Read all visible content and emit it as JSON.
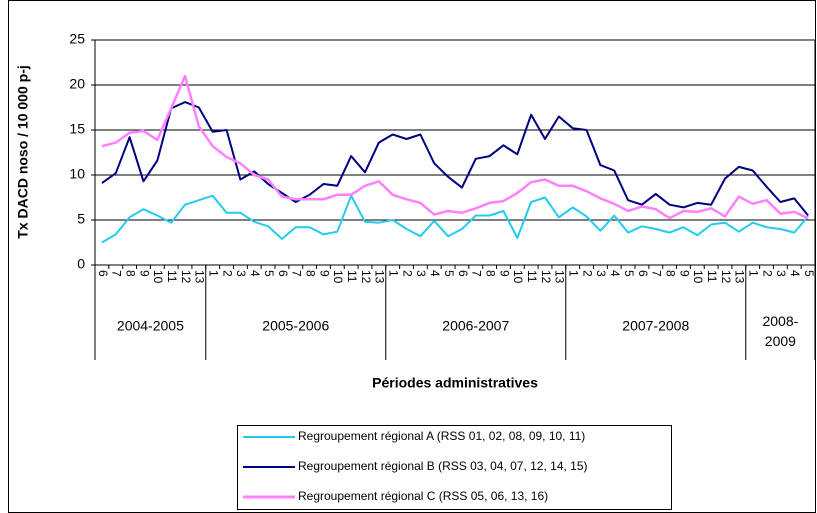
{
  "chart_data": {
    "type": "line",
    "y_label": "Tx DACD noso / 10 000 p-j",
    "x_label": "Périodes administratives",
    "groups": [
      {
        "label": "2004-2005",
        "categories": [
          "6",
          "7",
          "8",
          "9",
          "10",
          "11",
          "12",
          "13"
        ]
      },
      {
        "label": "2005-2006",
        "categories": [
          "1",
          "2",
          "3",
          "4",
          "5",
          "6",
          "7",
          "8",
          "9",
          "10",
          "11",
          "12",
          "13"
        ]
      },
      {
        "label": "2006-2007",
        "categories": [
          "1",
          "2",
          "3",
          "4",
          "5",
          "6",
          "7",
          "8",
          "9",
          "10",
          "11",
          "12",
          "13"
        ]
      },
      {
        "label": "2007-2008",
        "categories": [
          "1",
          "2",
          "3",
          "4",
          "5",
          "6",
          "7",
          "8",
          "9",
          "10",
          "11",
          "12",
          "13"
        ]
      },
      {
        "label": "2008-2009",
        "categories": [
          "1",
          "2",
          "3",
          "4",
          "5"
        ]
      }
    ],
    "series": [
      {
        "name": "Regroupement régional A (RSS 01, 02, 08, 09, 10, 11)",
        "color": "#22ccee",
        "values": [
          2.5,
          3.4,
          5.3,
          6.2,
          5.5,
          4.7,
          6.7,
          7.2,
          7.7,
          5.8,
          5.8,
          4.8,
          4.3,
          2.9,
          4.2,
          4.2,
          3.4,
          3.7,
          7.7,
          4.8,
          4.7,
          5.0,
          4.0,
          3.2,
          4.9,
          3.2,
          4.0,
          5.5,
          5.5,
          6.0,
          3.0,
          7.0,
          7.5,
          5.3,
          6.4,
          5.4,
          3.8,
          5.5,
          3.6,
          4.3,
          4.0,
          3.6,
          4.2,
          3.3,
          4.5,
          4.7,
          3.7,
          4.7,
          4.2,
          4.0,
          3.6,
          5.4
        ]
      },
      {
        "name": "Regroupement régional B (RSS 03, 04, 07, 12, 14, 15)",
        "color": "#000080",
        "values": [
          9.1,
          10.2,
          14.2,
          9.3,
          11.6,
          17.4,
          18.1,
          17.5,
          14.8,
          15.0,
          9.5,
          10.4,
          9.0,
          8.0,
          7.0,
          7.8,
          9.0,
          8.8,
          12.1,
          10.3,
          13.6,
          14.5,
          14.0,
          14.5,
          11.3,
          9.8,
          8.6,
          11.8,
          12.1,
          13.3,
          12.3,
          16.7,
          14.0,
          16.5,
          15.2,
          15.0,
          11.1,
          10.5,
          7.2,
          6.7,
          7.9,
          6.7,
          6.4,
          6.9,
          6.7,
          9.6,
          10.9,
          10.5,
          8.7,
          7.0,
          7.4,
          5.5
        ]
      },
      {
        "name": "Regroupement régional C (RSS 05, 06, 13, 16)",
        "color": "#ff80ff",
        "values": [
          13.2,
          13.6,
          14.7,
          14.9,
          13.9,
          17.4,
          21.0,
          15.4,
          13.2,
          12.0,
          11.3,
          10.0,
          9.5,
          7.6,
          7.3,
          7.3,
          7.3,
          7.8,
          7.8,
          8.8,
          9.3,
          7.8,
          7.3,
          6.9,
          5.6,
          6.0,
          5.8,
          6.3,
          6.9,
          7.1,
          8.0,
          9.2,
          9.5,
          8.8,
          8.8,
          8.2,
          7.4,
          6.8,
          6.0,
          6.5,
          6.2,
          5.2,
          6.0,
          5.9,
          6.3,
          5.4,
          7.6,
          6.8,
          7.2,
          5.7,
          5.9,
          5.2
        ]
      }
    ],
    "ylim": [
      0,
      25
    ],
    "yticks": [
      0,
      5,
      10,
      15,
      20,
      25
    ],
    "grid": true
  }
}
